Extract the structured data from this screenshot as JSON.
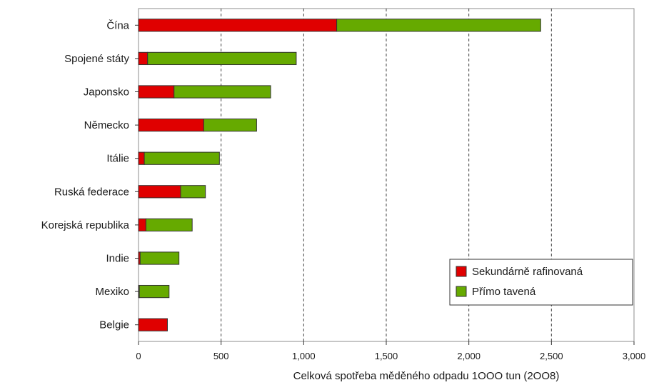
{
  "chart_data": {
    "type": "bar",
    "orientation": "horizontal",
    "stacked": true,
    "categories": [
      "Čína",
      "Spojené státy",
      "Japonsko",
      "Německo",
      "Itálie",
      "Ruská federace",
      "Korejská republika",
      "Indie",
      "Mexiko",
      "Belgie"
    ],
    "series": [
      {
        "name": "Sekundárně rafinovaná",
        "color": "#e00000",
        "values": [
          1200,
          55,
          215,
          395,
          35,
          255,
          45,
          10,
          5,
          175
        ]
      },
      {
        "name": "Přímo tavená",
        "color": "#66aa00",
        "values": [
          1235,
          900,
          585,
          320,
          455,
          150,
          280,
          235,
          180,
          0
        ]
      }
    ],
    "xlabel": "Celková spotřeba měděného odpadu 1OOO tun (2OO8)",
    "ylabel": "",
    "xlim": [
      0,
      3000
    ],
    "xticks": [
      0,
      500,
      1000,
      1500,
      2000,
      2500,
      3000
    ],
    "xtick_labels": [
      "0",
      "500",
      "1,000",
      "1,500",
      "2,000",
      "2,500",
      "3,000"
    ],
    "grid": "vertical dashed",
    "legend_position": "bottom-right"
  }
}
